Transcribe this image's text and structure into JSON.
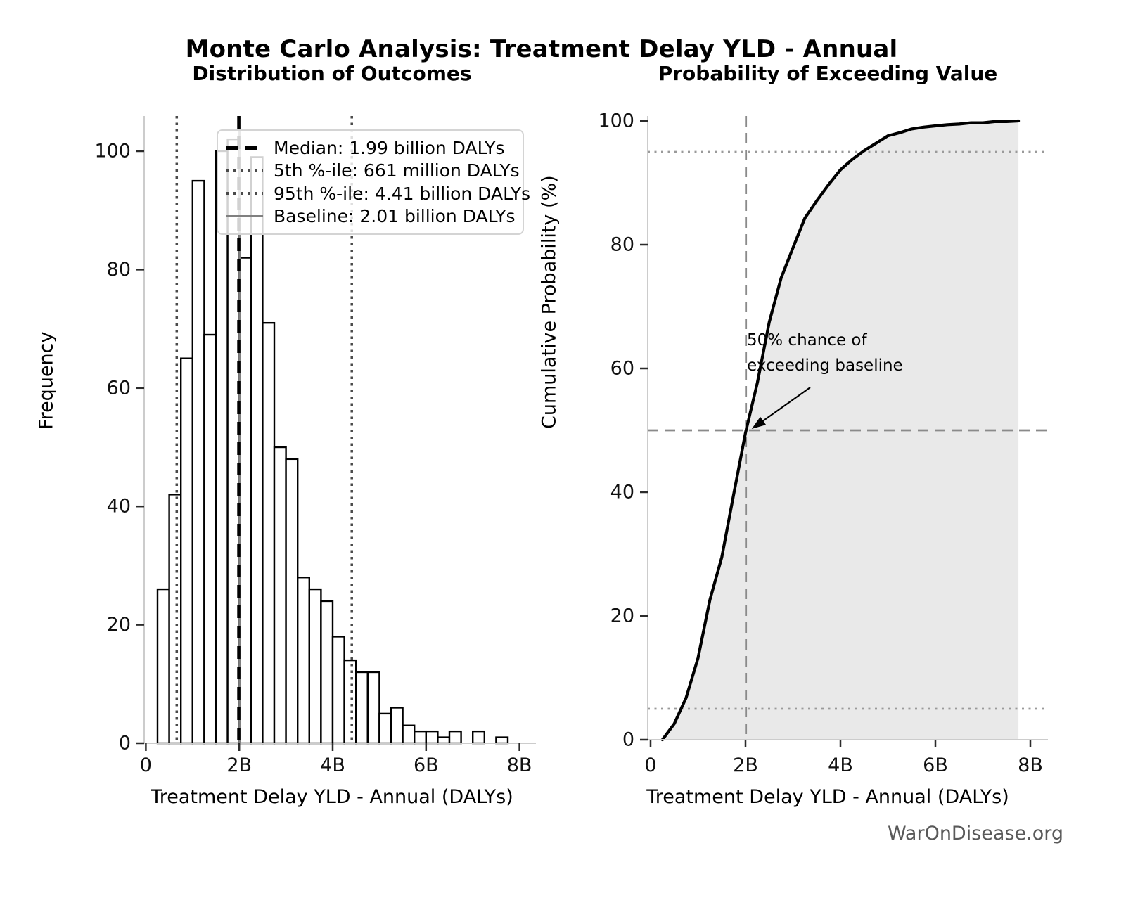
{
  "title": "Monte Carlo Analysis: Treatment Delay YLD - Annual",
  "watermark": "WarOnDisease.org",
  "chart_data": [
    {
      "type": "bar",
      "subtype": "histogram",
      "title": "Distribution of Outcomes",
      "xlabel": "Treatment Delay YLD - Annual (DALYs)",
      "ylabel": "Frequency",
      "x_unit": "billions of DALYs",
      "bin_start": 0.25,
      "bin_width": 0.25,
      "values": [
        26,
        42,
        65,
        95,
        69,
        100,
        102,
        82,
        99,
        71,
        50,
        48,
        28,
        26,
        24,
        18,
        14,
        12,
        12,
        5,
        6,
        3,
        2,
        2,
        1,
        2,
        0,
        2,
        0,
        1
      ],
      "xlim": [
        -0.05,
        8.35
      ],
      "ylim": [
        0,
        106
      ],
      "grid": false,
      "bar_fill": "#ffffff",
      "bar_edge": "#000000",
      "xticks": [
        {
          "value": 0,
          "label": "0"
        },
        {
          "value": 2,
          "label": "2B"
        },
        {
          "value": 4,
          "label": "4B"
        },
        {
          "value": 6,
          "label": "6B"
        },
        {
          "value": 8,
          "label": "8B"
        }
      ],
      "yticks": [
        {
          "value": 0,
          "label": "0"
        },
        {
          "value": 20,
          "label": "20"
        },
        {
          "value": 40,
          "label": "40"
        },
        {
          "value": 60,
          "label": "60"
        },
        {
          "value": 80,
          "label": "80"
        },
        {
          "value": 100,
          "label": "100"
        }
      ],
      "reference_lines": [
        {
          "name": "median",
          "value": 1.99,
          "style": "dashed",
          "color": "#000000",
          "legend_label": "Median: 1.99 billion DALYs"
        },
        {
          "name": "percentile-5",
          "value": 0.661,
          "style": "dotted",
          "color": "#4a4a4a",
          "legend_label": "5th %-ile: 661 million DALYs"
        },
        {
          "name": "percentile-95",
          "value": 4.41,
          "style": "dotted",
          "color": "#4a4a4a",
          "legend_label": "95th %-ile: 4.41 billion DALYs"
        },
        {
          "name": "baseline",
          "value": 2.01,
          "style": "solid",
          "color": "#808080",
          "legend_label": "Baseline: 2.01 billion DALYs"
        }
      ],
      "legend_position": "upper center"
    },
    {
      "type": "line",
      "subtype": "cdf",
      "title": "Probability of Exceeding Value",
      "xlabel": "Treatment Delay YLD - Annual (DALYs)",
      "ylabel": "Cumulative Probability (%)",
      "x_unit": "billions of DALYs",
      "x": [
        0.25,
        0.5,
        0.75,
        1.0,
        1.25,
        1.5,
        1.75,
        2.0,
        2.25,
        2.5,
        2.75,
        3.0,
        3.25,
        3.5,
        3.75,
        4.0,
        4.25,
        4.5,
        4.75,
        5.0,
        5.25,
        5.5,
        5.75,
        6.0,
        6.25,
        6.5,
        6.75,
        7.0,
        7.25,
        7.5,
        7.75
      ],
      "y": [
        0,
        2.6,
        6.8,
        13.2,
        22.6,
        29.5,
        39.6,
        49.6,
        57.7,
        67.5,
        74.6,
        79.5,
        84.3,
        87.1,
        89.7,
        92.1,
        93.8,
        95.2,
        96.4,
        97.6,
        98.1,
        98.7,
        99.0,
        99.2,
        99.4,
        99.5,
        99.7,
        99.7,
        99.9,
        99.9,
        100
      ],
      "line_color": "#000000",
      "fill_color": "#e9e9e9",
      "xlim": [
        -0.05,
        8.4
      ],
      "ylim": [
        0,
        100.5
      ],
      "xticks": [
        {
          "value": 0,
          "label": "0"
        },
        {
          "value": 2,
          "label": "2B"
        },
        {
          "value": 4,
          "label": "4B"
        },
        {
          "value": 6,
          "label": "6B"
        },
        {
          "value": 8,
          "label": "8B"
        }
      ],
      "yticks": [
        {
          "value": 0,
          "label": "0"
        },
        {
          "value": 20,
          "label": "20"
        },
        {
          "value": 40,
          "label": "40"
        },
        {
          "value": 60,
          "label": "60"
        },
        {
          "value": 80,
          "label": "80"
        },
        {
          "value": 100,
          "label": "100"
        }
      ],
      "reference_lines": [
        {
          "name": "level-95pct",
          "axis": "y",
          "value": 95,
          "style": "dotted",
          "color": "#9a9a9a"
        },
        {
          "name": "level-50pct",
          "axis": "y",
          "value": 50,
          "style": "dashed",
          "color": "#8a8a8a"
        },
        {
          "name": "level-5pct",
          "axis": "y",
          "value": 5,
          "style": "dotted",
          "color": "#9a9a9a"
        },
        {
          "name": "baseline-2B",
          "axis": "x",
          "value": 2.01,
          "style": "dashed",
          "color": "#8a8a8a"
        }
      ],
      "annotation": {
        "text_lines": [
          "50% chance of",
          "exceeding baseline"
        ],
        "arrow_to": {
          "x": 2.1,
          "y": 50
        }
      }
    }
  ]
}
